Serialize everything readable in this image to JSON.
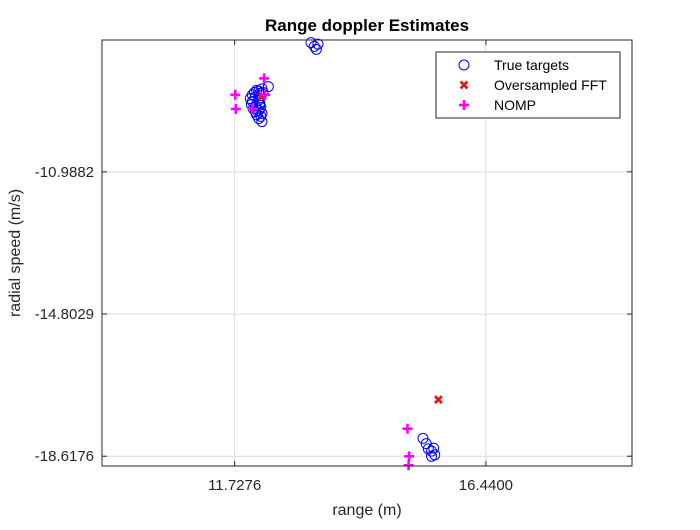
{
  "chart_data": {
    "type": "scatter",
    "title": "Range doppler Estimates",
    "xlabel": "range (m)",
    "ylabel": "radial speed (m/s)",
    "xlim": [
      9.24,
      19.18
    ],
    "ylim": [
      -18.88,
      -7.45
    ],
    "x_ticks": [
      11.7276,
      16.44
    ],
    "x_tick_labels": [
      "11.7276",
      "16.4400"
    ],
    "y_ticks": [
      -10.9882,
      -14.8029,
      -18.6176
    ],
    "y_tick_labels": [
      "-10.9882",
      "-14.8029",
      "-18.6176"
    ],
    "grid": true,
    "legend_position": "top-right",
    "series": [
      {
        "name": "True targets",
        "marker": "circle",
        "color": "#0000ff",
        "points": [
          [
            13.16,
            -7.52
          ],
          [
            13.29,
            -7.56
          ],
          [
            13.22,
            -7.62
          ],
          [
            13.26,
            -7.7
          ],
          [
            12.36,
            -8.7
          ],
          [
            12.24,
            -8.76
          ],
          [
            12.14,
            -8.8
          ],
          [
            12.18,
            -8.82
          ],
          [
            12.1,
            -8.86
          ],
          [
            12.2,
            -8.88
          ],
          [
            12.06,
            -8.92
          ],
          [
            12.22,
            -8.94
          ],
          [
            12.12,
            -8.98
          ],
          [
            12.02,
            -9.02
          ],
          [
            12.18,
            -9.06
          ],
          [
            12.06,
            -9.1
          ],
          [
            12.2,
            -9.14
          ],
          [
            12.04,
            -9.18
          ],
          [
            12.12,
            -9.22
          ],
          [
            12.22,
            -9.26
          ],
          [
            12.08,
            -9.3
          ],
          [
            12.18,
            -9.34
          ],
          [
            12.12,
            -9.38
          ],
          [
            12.24,
            -9.42
          ],
          [
            12.14,
            -9.46
          ],
          [
            12.22,
            -9.5
          ],
          [
            12.18,
            -9.56
          ],
          [
            12.24,
            -9.64
          ],
          [
            12.2,
            -9.2
          ],
          [
            12.26,
            -8.86
          ],
          [
            15.26,
            -18.14
          ],
          [
            15.32,
            -18.28
          ],
          [
            15.36,
            -18.42
          ],
          [
            15.42,
            -18.48
          ],
          [
            15.46,
            -18.4
          ],
          [
            15.48,
            -18.58
          ],
          [
            15.42,
            -18.62
          ]
        ]
      },
      {
        "name": "Oversampled FFT",
        "marker": "x",
        "color": "#e01b1b",
        "points": [
          [
            12.24,
            -8.96
          ],
          [
            15.55,
            -17.1
          ]
        ]
      },
      {
        "name": "NOMP",
        "marker": "plus",
        "color": "#ff00ff",
        "points": [
          [
            11.74,
            -8.92
          ],
          [
            11.75,
            -9.3
          ],
          [
            12.06,
            -9.3
          ],
          [
            12.28,
            -8.48
          ],
          [
            12.3,
            -8.92
          ],
          [
            14.97,
            -17.88
          ],
          [
            15.0,
            -18.62
          ],
          [
            14.99,
            -18.86
          ]
        ]
      }
    ]
  }
}
